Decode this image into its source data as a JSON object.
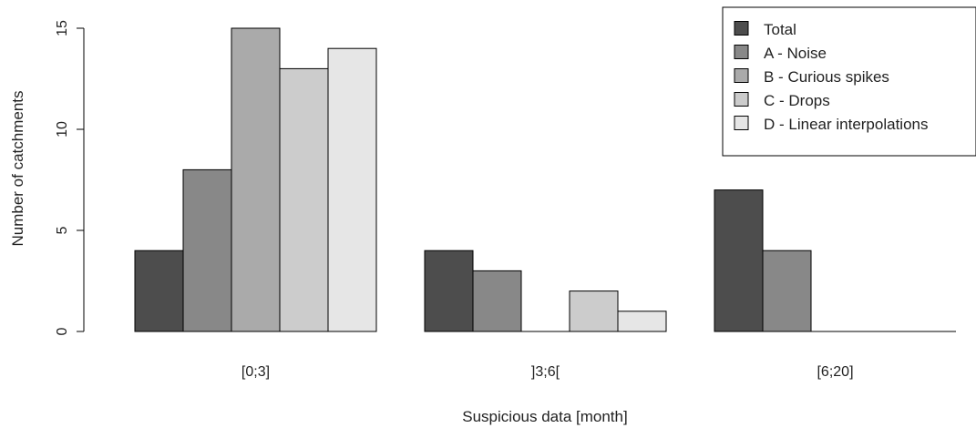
{
  "chart_data": {
    "type": "bar",
    "title": "",
    "xlabel": "Suspicious data [month]",
    "ylabel": "Number of catchments",
    "categories": [
      "[0;3]",
      "]3;6[",
      "[6;20]"
    ],
    "series": [
      {
        "name": "Total",
        "color": "#4d4d4d",
        "values": [
          4,
          4,
          7
        ]
      },
      {
        "name": "A - Noise",
        "color": "#888888",
        "values": [
          8,
          3,
          4
        ]
      },
      {
        "name": "B - Curious spikes",
        "color": "#aaaaaa",
        "values": [
          15,
          0,
          0
        ]
      },
      {
        "name": "C - Drops",
        "color": "#cccccc",
        "values": [
          13,
          2,
          0
        ]
      },
      {
        "name": "D - Linear interpolations",
        "color": "#e6e6e6",
        "values": [
          14,
          1,
          0
        ]
      }
    ],
    "ylim": [
      0,
      15
    ],
    "yticks": [
      0,
      5,
      10,
      15
    ],
    "grid": false,
    "legend_position": "top-right"
  }
}
